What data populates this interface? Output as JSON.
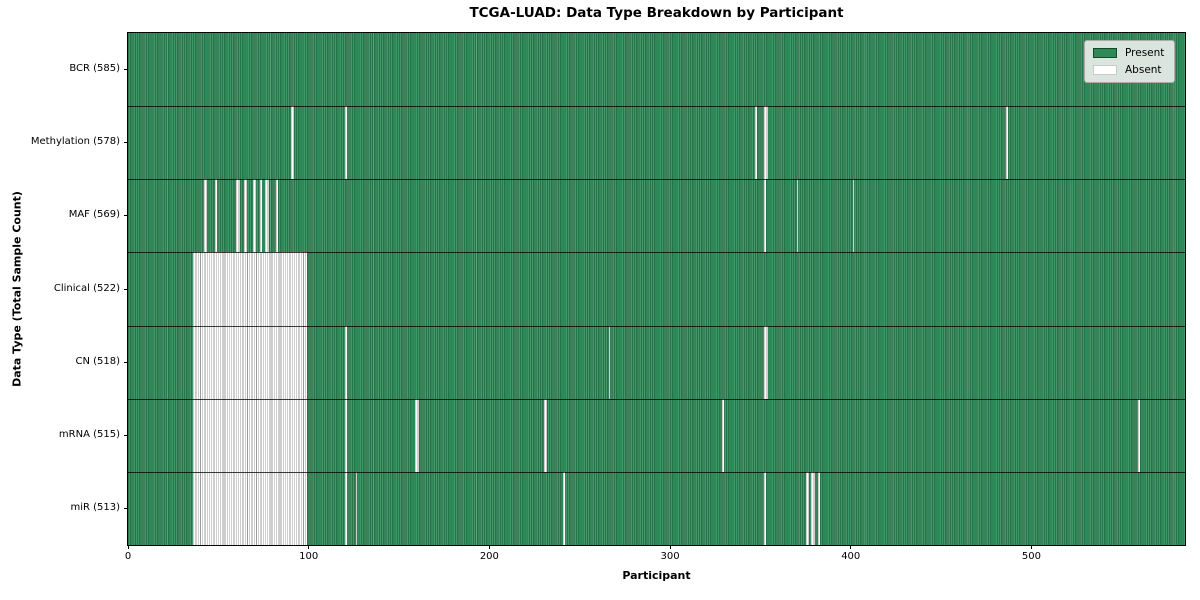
{
  "title": "TCGA-LUAD: Data Type Breakdown by Participant",
  "colors": {
    "present": "#2e8b57",
    "present_edge_dark": "#1d5c3a",
    "present_edge_light": "#58a37c",
    "absent": "#ffffff",
    "absent_edge": "#9c9c9c",
    "legend_bg": "#e9ede9",
    "plot_border": "#000000"
  },
  "chart_data": {
    "type": "heatmap",
    "title": "TCGA-LUAD: Data Type Breakdown by Participant",
    "xlabel": "Participant",
    "ylabel": "Data Type (Total Sample Count)",
    "legend": [
      "Present",
      "Absent"
    ],
    "legend_position": "upper right",
    "n_participants": 585,
    "x_ticks": [
      0,
      100,
      200,
      300,
      400,
      500
    ],
    "xlim": [
      0,
      585
    ],
    "cell_values": "present=1 (green), absent=0 (white)",
    "rows": [
      {
        "label": "BCR (585)",
        "data_type": "BCR",
        "total_samples": 585,
        "absent_count": 0,
        "absent_segments": []
      },
      {
        "label": "Methylation (578)",
        "data_type": "Methylation",
        "total_samples": 578,
        "absent_count": 7,
        "absent_segments": [
          [
            90,
            91
          ],
          [
            120,
            120
          ],
          [
            347,
            347
          ],
          [
            352,
            353
          ],
          [
            486,
            486
          ]
        ]
      },
      {
        "label": "MAF (569)",
        "data_type": "MAF",
        "total_samples": 569,
        "absent_count": 16,
        "absent_segments": [
          [
            42,
            43
          ],
          [
            48,
            48
          ],
          [
            60,
            61
          ],
          [
            64,
            65
          ],
          [
            69,
            70
          ],
          [
            73,
            73
          ],
          [
            76,
            77
          ],
          [
            82,
            82
          ],
          [
            352,
            352
          ],
          [
            370,
            370
          ],
          [
            401,
            401
          ]
        ]
      },
      {
        "label": "Clinical (522)",
        "data_type": "Clinical",
        "total_samples": 522,
        "absent_count": 63,
        "absent_segments": [
          [
            36,
            98
          ]
        ]
      },
      {
        "label": "CN (518)",
        "data_type": "CN",
        "total_samples": 518,
        "absent_count": 67,
        "absent_segments": [
          [
            36,
            98
          ],
          [
            120,
            120
          ],
          [
            266,
            266
          ],
          [
            352,
            353
          ]
        ]
      },
      {
        "label": "mRNA (515)",
        "data_type": "mRNA",
        "total_samples": 515,
        "absent_count": 70,
        "absent_segments": [
          [
            36,
            98
          ],
          [
            120,
            120
          ],
          [
            159,
            160
          ],
          [
            230,
            231
          ],
          [
            329,
            329
          ],
          [
            559,
            559
          ]
        ]
      },
      {
        "label": "miR (513)",
        "data_type": "miR",
        "total_samples": 513,
        "absent_count": 72,
        "absent_segments": [
          [
            36,
            98
          ],
          [
            120,
            120
          ],
          [
            126,
            126
          ],
          [
            241,
            241
          ],
          [
            352,
            352
          ],
          [
            375,
            376
          ],
          [
            378,
            379
          ],
          [
            382,
            382
          ]
        ]
      }
    ]
  }
}
